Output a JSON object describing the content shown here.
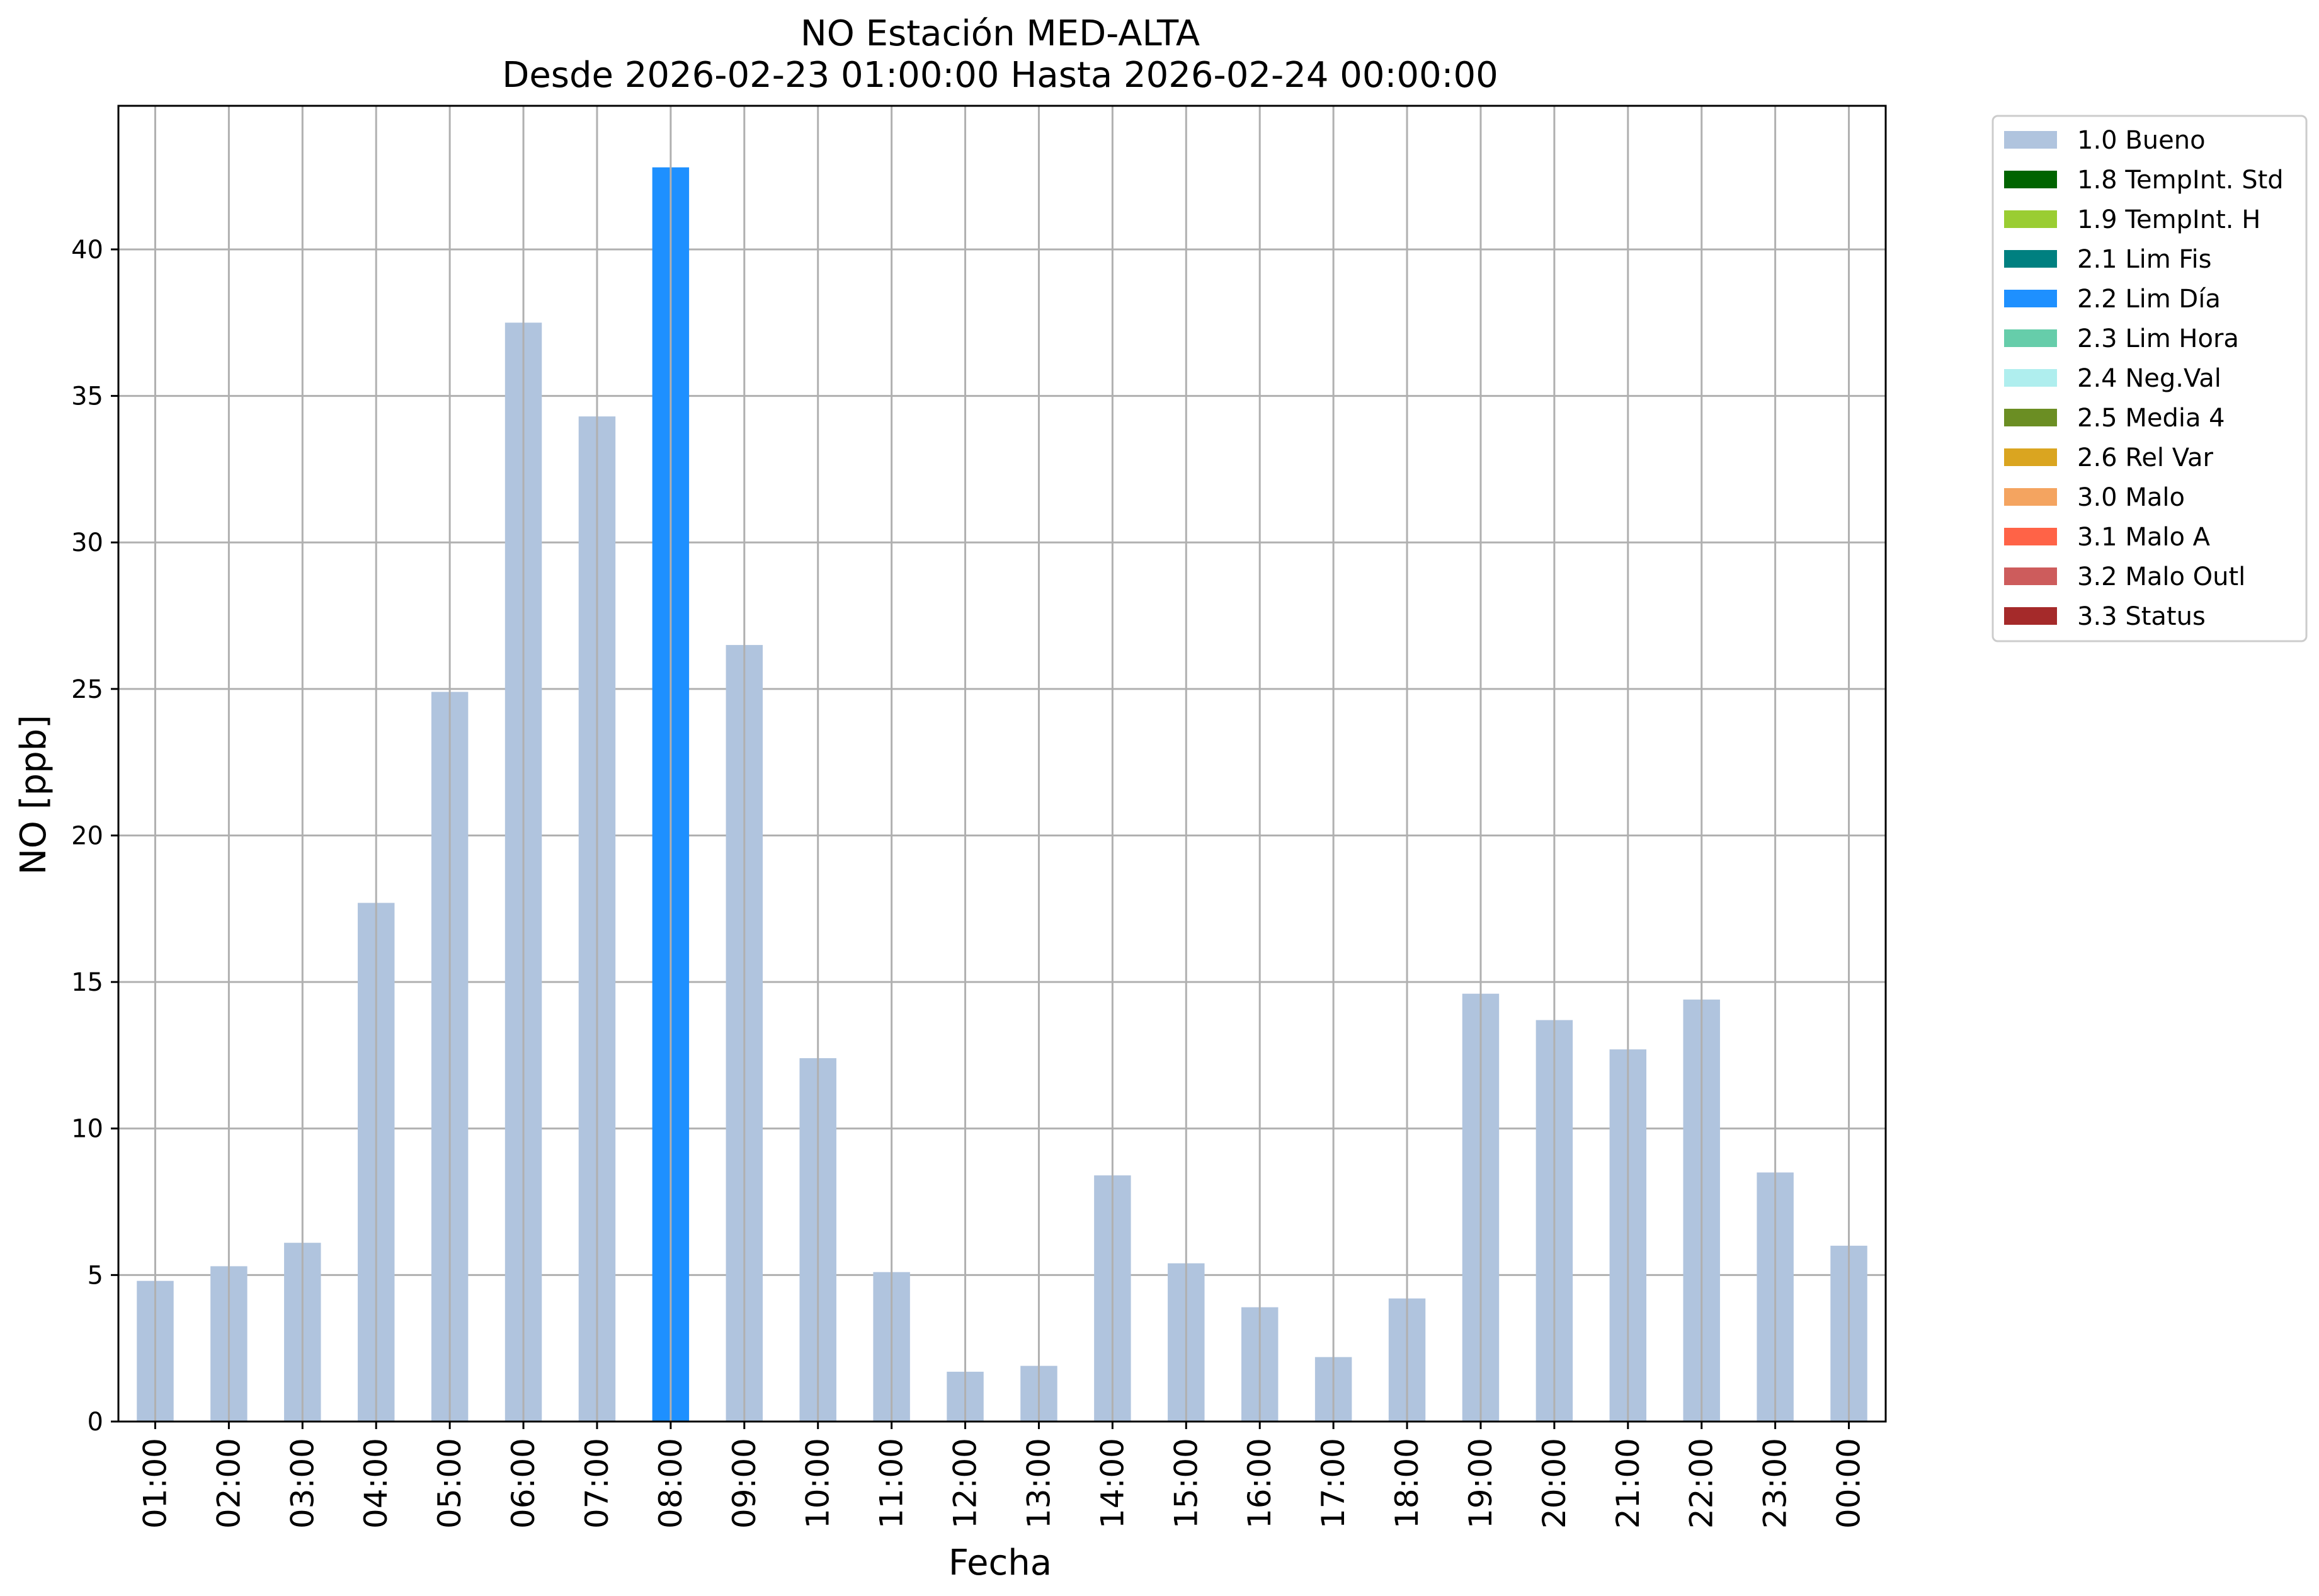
{
  "chart_data": {
    "type": "bar",
    "title": "NO Estación MED-ALTA",
    "subtitle": "Desde 2026-02-23 01:00:00 Hasta 2026-02-24 00:00:00",
    "xlabel": "Fecha",
    "ylabel": "NO [ppb]",
    "ylim": [
      0,
      44.9
    ],
    "yticks": [
      0,
      5,
      10,
      15,
      20,
      25,
      30,
      35,
      40
    ],
    "grid": true,
    "legend_position": "outside-top-right",
    "categories": [
      "01:00",
      "02:00",
      "03:00",
      "04:00",
      "05:00",
      "06:00",
      "07:00",
      "08:00",
      "09:00",
      "10:00",
      "11:00",
      "12:00",
      "13:00",
      "14:00",
      "15:00",
      "16:00",
      "17:00",
      "18:00",
      "19:00",
      "20:00",
      "21:00",
      "22:00",
      "23:00",
      "00:00"
    ],
    "values": [
      4.8,
      5.3,
      6.1,
      17.7,
      24.9,
      37.5,
      34.3,
      42.8,
      26.5,
      12.4,
      5.1,
      1.7,
      1.9,
      8.4,
      5.4,
      3.9,
      2.2,
      4.2,
      14.6,
      13.7,
      12.7,
      14.4,
      8.5,
      6.0
    ],
    "flags": [
      "1.0",
      "1.0",
      "1.0",
      "1.0",
      "1.0",
      "1.0",
      "1.0",
      "2.2",
      "1.0",
      "1.0",
      "1.0",
      "1.0",
      "1.0",
      "1.0",
      "1.0",
      "1.0",
      "1.0",
      "1.0",
      "1.0",
      "1.0",
      "1.0",
      "1.0",
      "1.0",
      "1.0"
    ],
    "legend": [
      {
        "code": "1.0",
        "label": "1.0 Bueno",
        "color": "#b0c4de"
      },
      {
        "code": "1.8",
        "label": "1.8 TempInt. Std",
        "color": "#006400"
      },
      {
        "code": "1.9",
        "label": "1.9 TempInt. H",
        "color": "#9acd32"
      },
      {
        "code": "2.1",
        "label": "2.1 Lim Fis",
        "color": "#008080"
      },
      {
        "code": "2.2",
        "label": "2.2 Lim Día",
        "color": "#1e90ff"
      },
      {
        "code": "2.3",
        "label": "2.3 Lim Hora",
        "color": "#66cdaa"
      },
      {
        "code": "2.4",
        "label": "2.4 Neg.Val",
        "color": "#afeeee"
      },
      {
        "code": "2.5",
        "label": "2.5 Media 4",
        "color": "#6b8e23"
      },
      {
        "code": "2.6",
        "label": "2.6 Rel Var",
        "color": "#daa520"
      },
      {
        "code": "3.0",
        "label": "3.0 Malo",
        "color": "#f4a460"
      },
      {
        "code": "3.1",
        "label": "3.1 Malo A",
        "color": "#ff6347"
      },
      {
        "code": "3.2",
        "label": "3.2 Malo Outl",
        "color": "#cd5c5c"
      },
      {
        "code": "3.3",
        "label": "3.3 Status",
        "color": "#a52a2a"
      }
    ]
  }
}
